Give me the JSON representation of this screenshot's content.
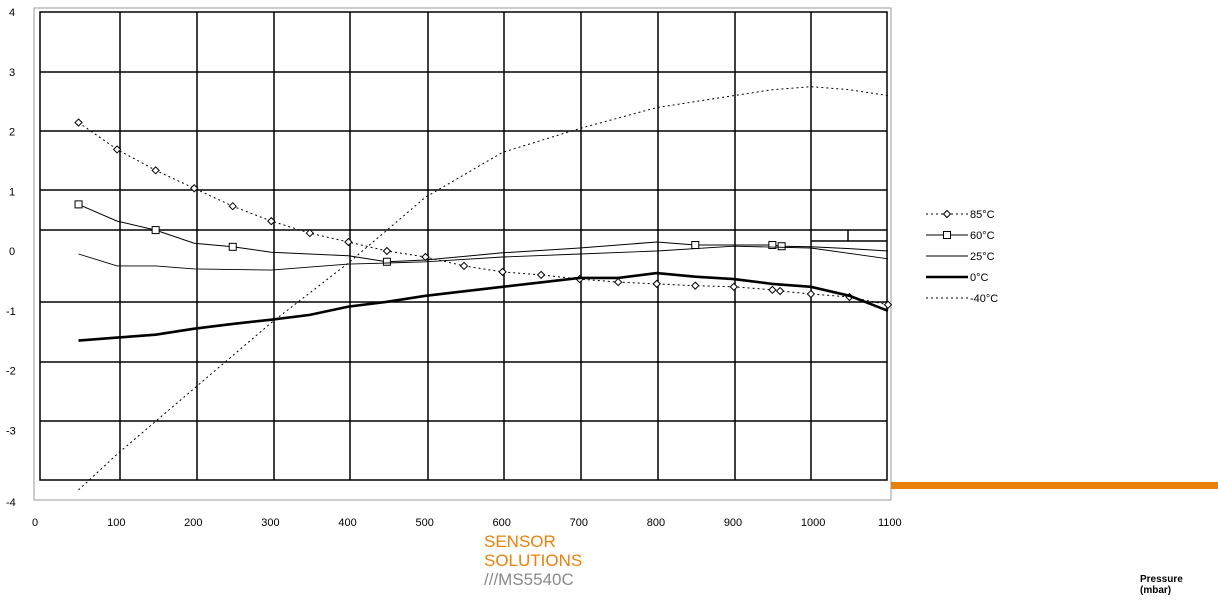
{
  "chart_data": {
    "type": "line",
    "xlim": [
      0,
      1100
    ],
    "ylim": [
      -4,
      4
    ],
    "x_ticks": [
      "0",
      "100",
      "200",
      "300",
      "400",
      "500",
      "600",
      "700",
      "800",
      "900",
      "1000",
      "1100"
    ],
    "y_ticks": [
      "4",
      "3",
      "2",
      "1",
      "0",
      "-1",
      "-2",
      "-3",
      "-4"
    ],
    "xlabel": "Pressure\n(mbar)",
    "ylabel": "",
    "grid": true,
    "legend_position": "right",
    "series": [
      {
        "name": "85°C",
        "style": "dotted-diamond",
        "color": "#000000",
        "x": [
          50,
          100,
          150,
          200,
          250,
          300,
          350,
          400,
          450,
          500,
          550,
          600,
          650,
          700,
          750,
          800,
          850,
          900,
          950,
          960,
          1000,
          1050,
          1100
        ],
        "y": [
          2.15,
          1.7,
          1.35,
          1.05,
          0.75,
          0.5,
          0.3,
          0.15,
          0.0,
          -0.1,
          -0.25,
          -0.35,
          -0.4,
          -0.47,
          -0.52,
          -0.55,
          -0.58,
          -0.6,
          -0.65,
          -0.67,
          -0.72,
          -0.77,
          -0.9
        ]
      },
      {
        "name": "60°C",
        "style": "solid-square",
        "color": "#000000",
        "x": [
          50,
          100,
          150,
          200,
          250,
          300,
          400,
          450,
          500,
          600,
          700,
          800,
          850,
          950,
          962,
          1000,
          1050,
          1100
        ],
        "y": [
          0.78,
          0.5,
          0.35,
          0.13,
          0.07,
          -0.02,
          -0.08,
          -0.18,
          -0.15,
          -0.03,
          0.05,
          0.15,
          0.1,
          0.1,
          0.08,
          0.07,
          0.04,
          0.0
        ]
      },
      {
        "name": "25°C",
        "style": "solid-thin",
        "color": "#000000",
        "x": [
          50,
          100,
          150,
          200,
          300,
          400,
          450,
          500,
          600,
          700,
          800,
          900,
          1000,
          1100
        ],
        "y": [
          -0.05,
          -0.25,
          -0.25,
          -0.3,
          -0.32,
          -0.22,
          -0.2,
          -0.18,
          -0.1,
          -0.05,
          0.0,
          0.08,
          0.05,
          -0.13
        ]
      },
      {
        "name": "0°C",
        "style": "solid-thick",
        "color": "#000000",
        "x": [
          50,
          100,
          150,
          200,
          250,
          300,
          350,
          400,
          450,
          500,
          600,
          700,
          750,
          800,
          850,
          900,
          950,
          1000,
          1050,
          1100
        ],
        "y": [
          -1.5,
          -1.45,
          -1.4,
          -1.3,
          -1.22,
          -1.15,
          -1.07,
          -0.93,
          -0.85,
          -0.75,
          -0.6,
          -0.45,
          -0.45,
          -0.37,
          -0.43,
          -0.47,
          -0.55,
          -0.6,
          -0.75,
          -1.0
        ]
      },
      {
        "name": "-40°C",
        "style": "dotted-thin",
        "color": "#000000",
        "x": [
          50,
          100,
          200,
          300,
          400,
          500,
          600,
          700,
          800,
          900,
          950,
          1000,
          1050,
          1100
        ],
        "y": [
          -4.0,
          -3.4,
          -2.3,
          -1.2,
          -0.2,
          0.9,
          1.65,
          2.05,
          2.4,
          2.6,
          2.7,
          2.75,
          2.7,
          2.6
        ]
      }
    ]
  },
  "brand": {
    "line1": "SENSOR",
    "line2": "SOLUTIONS",
    "line3": "///MS5540C",
    "accent_color": "#e8820c"
  }
}
